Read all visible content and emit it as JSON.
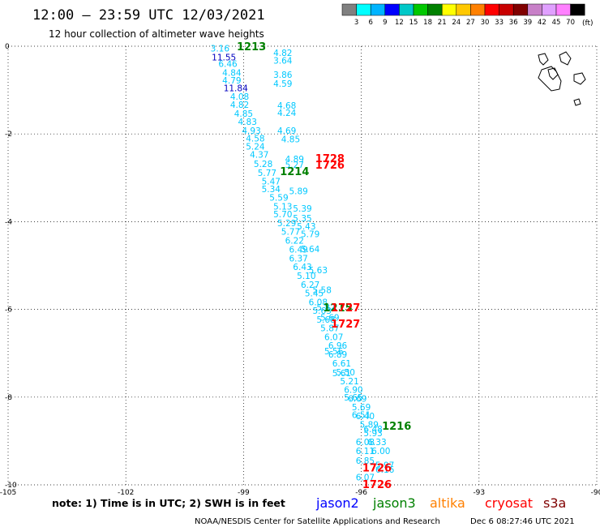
{
  "header": {
    "title": "12:00 – 23:59 UTC 12/03/2021",
    "subtitle": "12 hour collection of altimeter wave heights"
  },
  "legend": {
    "unit": "(ft)",
    "colors": [
      "#808080",
      "#00ffff",
      "#00b4ff",
      "#0000ff",
      "#00c8c8",
      "#00c800",
      "#008000",
      "#ffff00",
      "#ffc800",
      "#ff8000",
      "#ff0000",
      "#c80000",
      "#800000",
      "#c880c8",
      "#e0a0ff",
      "#ff80ff",
      "#000000"
    ],
    "ticks": [
      "3",
      "6",
      "9",
      "12",
      "15",
      "18",
      "21",
      "24",
      "27",
      "30",
      "33",
      "36",
      "39",
      "42",
      "45",
      "70"
    ]
  },
  "axes": {
    "lat_labels": [
      "0",
      "-2",
      "-4",
      "-6",
      "-8",
      "-10"
    ],
    "lon_labels": [
      "-105",
      "-102",
      "-99",
      "-96",
      "-93",
      "-90"
    ]
  },
  "chart_data": {
    "type": "scatter",
    "xlabel": "",
    "ylabel": "",
    "xlim": [
      -105,
      -90
    ],
    "ylim": [
      -10,
      0
    ],
    "readings": [
      {
        "lon": -99.6,
        "lat": -0.05,
        "v": "3.16",
        "c": "#00c8ff"
      },
      {
        "lon": -99.5,
        "lat": -0.25,
        "v": "11.55",
        "c": "#0000c0"
      },
      {
        "lon": -99.4,
        "lat": -0.4,
        "v": "6.46",
        "c": "#00c8ff"
      },
      {
        "lon": -99.3,
        "lat": -0.6,
        "v": "4.84",
        "c": "#00c8ff"
      },
      {
        "lon": -99.3,
        "lat": -0.78,
        "v": "4.79",
        "c": "#00c8ff"
      },
      {
        "lon": -99.2,
        "lat": -0.95,
        "v": "11.84",
        "c": "#0000c0"
      },
      {
        "lon": -99.1,
        "lat": -1.15,
        "v": "4.08",
        "c": "#00c8ff"
      },
      {
        "lon": -99.1,
        "lat": -1.33,
        "v": "4.82",
        "c": "#00c8ff"
      },
      {
        "lon": -99.0,
        "lat": -1.53,
        "v": "4.85",
        "c": "#00c8ff"
      },
      {
        "lon": -98.9,
        "lat": -1.72,
        "v": "4.83",
        "c": "#00c8ff"
      },
      {
        "lon": -98.8,
        "lat": -1.92,
        "v": "4.93",
        "c": "#00c8ff"
      },
      {
        "lon": -98.7,
        "lat": -2.1,
        "v": "4.58",
        "c": "#00c8ff"
      },
      {
        "lon": -98.7,
        "lat": -2.28,
        "v": "5.24",
        "c": "#00c8ff"
      },
      {
        "lon": -98.6,
        "lat": -2.47,
        "v": "4.37",
        "c": "#00c8ff"
      },
      {
        "lon": -98.5,
        "lat": -2.68,
        "v": "5.28",
        "c": "#00c8ff"
      },
      {
        "lon": -98.4,
        "lat": -2.88,
        "v": "5.77",
        "c": "#00c8ff"
      },
      {
        "lon": -98.3,
        "lat": -3.08,
        "v": "5.47",
        "c": "#00c8ff"
      },
      {
        "lon": -98.3,
        "lat": -3.25,
        "v": "5.34",
        "c": "#00c8ff"
      },
      {
        "lon": -98.1,
        "lat": -3.45,
        "v": "5.59",
        "c": "#00c8ff"
      },
      {
        "lon": -98.0,
        "lat": -3.65,
        "v": "5.13",
        "c": "#00c8ff"
      },
      {
        "lon": -98.0,
        "lat": -3.83,
        "v": "5.70",
        "c": "#00c8ff"
      },
      {
        "lon": -97.9,
        "lat": -4.03,
        "v": "5.29",
        "c": "#00c8ff"
      },
      {
        "lon": -97.8,
        "lat": -4.22,
        "v": "5.77",
        "c": "#00c8ff"
      },
      {
        "lon": -97.7,
        "lat": -4.43,
        "v": "6.22",
        "c": "#00c8ff"
      },
      {
        "lon": -97.6,
        "lat": -4.63,
        "v": "6.49",
        "c": "#00c8ff"
      },
      {
        "lon": -97.6,
        "lat": -4.83,
        "v": "6.37",
        "c": "#00c8ff"
      },
      {
        "lon": -97.5,
        "lat": -5.03,
        "v": "6.43",
        "c": "#00c8ff"
      },
      {
        "lon": -97.4,
        "lat": -5.23,
        "v": "5.10",
        "c": "#00c8ff"
      },
      {
        "lon": -97.3,
        "lat": -5.43,
        "v": "6.27",
        "c": "#00c8ff"
      },
      {
        "lon": -97.2,
        "lat": -5.63,
        "v": "5.45",
        "c": "#00c8ff"
      },
      {
        "lon": -97.1,
        "lat": -5.83,
        "v": "6.08",
        "c": "#00c8ff"
      },
      {
        "lon": -97.0,
        "lat": -6.03,
        "v": "5.63",
        "c": "#00c8ff"
      },
      {
        "lon": -96.9,
        "lat": -6.23,
        "v": "5.68",
        "c": "#00c8ff"
      },
      {
        "lon": -96.8,
        "lat": -6.42,
        "v": "5.87",
        "c": "#00c8ff"
      },
      {
        "lon": -96.7,
        "lat": -6.63,
        "v": "6.07",
        "c": "#00c8ff"
      },
      {
        "lon": -96.6,
        "lat": -6.82,
        "v": "6.96",
        "c": "#00c8ff"
      },
      {
        "lon": -96.6,
        "lat": -7.02,
        "v": "6.89",
        "c": "#00c8ff"
      },
      {
        "lon": -96.5,
        "lat": -7.23,
        "v": "6.61",
        "c": "#00c8ff"
      },
      {
        "lon": -96.4,
        "lat": -7.43,
        "v": "5.50",
        "c": "#00c8ff"
      },
      {
        "lon": -96.3,
        "lat": -7.63,
        "v": "5.21",
        "c": "#00c8ff"
      },
      {
        "lon": -96.2,
        "lat": -7.83,
        "v": "6.90",
        "c": "#00c8ff"
      },
      {
        "lon": -96.1,
        "lat": -8.03,
        "v": "6.69",
        "c": "#00c8ff"
      },
      {
        "lon": -96.0,
        "lat": -8.23,
        "v": "5.69",
        "c": "#00c8ff"
      },
      {
        "lon": -95.9,
        "lat": -8.43,
        "v": "6.40",
        "c": "#00c8ff"
      },
      {
        "lon": -95.8,
        "lat": -8.62,
        "v": "5.89",
        "c": "#00c8ff"
      },
      {
        "lon": -95.7,
        "lat": -8.82,
        "v": "5.93",
        "c": "#00c8ff"
      },
      {
        "lon": -95.9,
        "lat": -9.02,
        "v": "6.08",
        "c": "#00c8ff"
      },
      {
        "lon": -95.6,
        "lat": -9.02,
        "v": "6.33",
        "c": "#00c8ff"
      },
      {
        "lon": -95.9,
        "lat": -9.22,
        "v": "6.11",
        "c": "#00c8ff"
      },
      {
        "lon": -95.5,
        "lat": -9.22,
        "v": "6.00",
        "c": "#00c8ff"
      },
      {
        "lon": -95.9,
        "lat": -9.45,
        "v": "6.85",
        "c": "#00c8ff"
      },
      {
        "lon": -95.4,
        "lat": -9.65,
        "v": "6.16",
        "c": "#00c8ff"
      },
      {
        "lon": -95.9,
        "lat": -9.82,
        "v": "6.07",
        "c": "#00c8ff"
      },
      {
        "lon": -98.0,
        "lat": -0.15,
        "v": "4.82",
        "c": "#00c8ff"
      },
      {
        "lon": -98.0,
        "lat": -0.32,
        "v": "3.64",
        "c": "#00c8ff"
      },
      {
        "lon": -98.0,
        "lat": -0.65,
        "v": "3.86",
        "c": "#00c8ff"
      },
      {
        "lon": -98.0,
        "lat": -0.85,
        "v": "4.59",
        "c": "#00c8ff"
      },
      {
        "lon": -97.9,
        "lat": -1.35,
        "v": "4.68",
        "c": "#00c8ff"
      },
      {
        "lon": -97.9,
        "lat": -1.52,
        "v": "4.24",
        "c": "#00c8ff"
      },
      {
        "lon": -97.9,
        "lat": -1.92,
        "v": "4.69",
        "c": "#00c8ff"
      },
      {
        "lon": -97.8,
        "lat": -2.12,
        "v": "4.85",
        "c": "#00c8ff"
      },
      {
        "lon": -97.7,
        "lat": -2.57,
        "v": "4.89",
        "c": "#00c8ff"
      },
      {
        "lon": -97.7,
        "lat": -2.7,
        "v": "5.27",
        "c": "#00c8ff"
      },
      {
        "lon": -97.6,
        "lat": -3.3,
        "v": "5.89",
        "c": "#00c8ff"
      },
      {
        "lon": -97.5,
        "lat": -3.7,
        "v": "5.39",
        "c": "#00c8ff"
      },
      {
        "lon": -97.5,
        "lat": -3.92,
        "v": "5.35",
        "c": "#00c8ff"
      },
      {
        "lon": -97.4,
        "lat": -4.1,
        "v": "5.43",
        "c": "#00c8ff"
      },
      {
        "lon": -97.3,
        "lat": -4.28,
        "v": "5.79",
        "c": "#00c8ff"
      },
      {
        "lon": -97.3,
        "lat": -4.62,
        "v": "5.64",
        "c": "#00c8ff"
      },
      {
        "lon": -97.1,
        "lat": -5.1,
        "v": "5.63",
        "c": "#00c8ff"
      },
      {
        "lon": -97.0,
        "lat": -5.55,
        "v": "5.58",
        "c": "#00c8ff"
      },
      {
        "lon": -96.9,
        "lat": -5.95,
        "v": "5.82",
        "c": "#00c8ff"
      },
      {
        "lon": -96.8,
        "lat": -6.18,
        "v": "5.69",
        "c": "#00c8ff"
      },
      {
        "lon": -96.7,
        "lat": -6.95,
        "v": "5.56",
        "c": "#00c8ff"
      },
      {
        "lon": -96.5,
        "lat": -7.45,
        "v": "5.61",
        "c": "#00c8ff"
      },
      {
        "lon": -96.2,
        "lat": -8.0,
        "v": "5.65",
        "c": "#00c8ff"
      },
      {
        "lon": -96.0,
        "lat": -8.4,
        "v": "6.51",
        "c": "#00c8ff"
      },
      {
        "lon": -95.7,
        "lat": -8.72,
        "v": "6.48",
        "c": "#00c8ff"
      },
      {
        "lon": -95.4,
        "lat": -9.55,
        "v": "5.97",
        "c": "#00c8ff"
      }
    ],
    "times": [
      {
        "lon": -98.8,
        "lat": 0.0,
        "v": "1213",
        "c": "#008000"
      },
      {
        "lon": -97.7,
        "lat": -2.85,
        "v": "1214",
        "c": "#008000"
      },
      {
        "lon": -96.6,
        "lat": -5.95,
        "v": "1215",
        "c": "#008000"
      },
      {
        "lon": -95.1,
        "lat": -8.65,
        "v": "1216",
        "c": "#008000"
      },
      {
        "lon": -96.8,
        "lat": -2.55,
        "v": "1728",
        "c": "#ff0000"
      },
      {
        "lon": -96.8,
        "lat": -2.7,
        "v": "1726",
        "c": "#ff0000"
      },
      {
        "lon": -96.4,
        "lat": -5.95,
        "v": "1727",
        "c": "#ff0000"
      },
      {
        "lon": -96.4,
        "lat": -6.32,
        "v": "1727",
        "c": "#ff0000"
      },
      {
        "lon": -95.6,
        "lat": -9.6,
        "v": "1726",
        "c": "#ff0000"
      },
      {
        "lon": -95.6,
        "lat": -9.98,
        "v": "1726",
        "c": "#ff0000"
      }
    ]
  },
  "footer": {
    "note": "note: 1) Time is in UTC; 2) SWH is in feet",
    "satellites": [
      {
        "name": "jason2",
        "color": "#0000ff"
      },
      {
        "name": "jason3",
        "color": "#008000"
      },
      {
        "name": "altika",
        "color": "#ff8000"
      },
      {
        "name": "cryosat",
        "color": "#ff0000"
      },
      {
        "name": "s3a",
        "color": "#800000"
      }
    ],
    "credit": "NOAA/NESDIS Center for Satellite Applications and Research",
    "timestamp": "Dec  6 08:27:46 UTC 2021"
  }
}
